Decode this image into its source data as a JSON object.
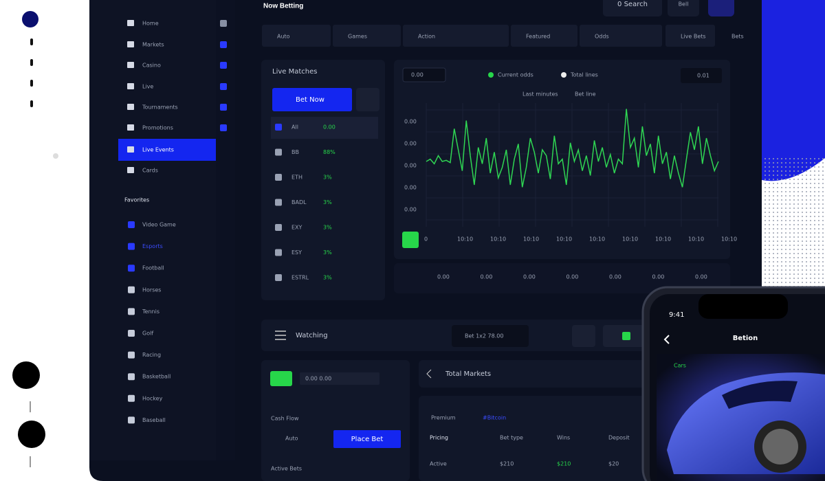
{
  "header": {
    "title": "Now Betting",
    "buttons": [
      "0 Search",
      "Bell"
    ]
  },
  "filters": [
    "Auto",
    "Games",
    "Action",
    "Featured",
    "Odds",
    "Live Bets",
    "Bets"
  ],
  "sidebar": {
    "items": [
      "Home",
      "Markets",
      "Casino",
      "Live",
      "Tournaments",
      "Promotions",
      "Live Events",
      "Cards"
    ],
    "active": 6,
    "section": "Favorites",
    "favorites": [
      "Video Game",
      "Esports",
      "Football",
      "Horses",
      "Tennis",
      "Golf",
      "Racing",
      "Basketball",
      "Hockey",
      "Baseball"
    ]
  },
  "live_panel": {
    "title": "Live Matches",
    "button": "Bet Now",
    "rows": [
      [
        "All",
        "0.00"
      ],
      [
        "BB",
        "88%"
      ],
      [
        "ETH",
        "3%"
      ],
      [
        "BADL",
        "3%"
      ],
      [
        "EXY",
        "3%"
      ],
      [
        "ESY",
        "3%"
      ],
      [
        "ESTRL",
        "3%"
      ]
    ]
  },
  "price_chart": {
    "badge": "0.00",
    "legend": [
      "Current odds",
      "Total lines"
    ],
    "selector": "0.01",
    "subtitle": [
      "Last minutes",
      "Bet line"
    ],
    "y_labels": [
      "0.00",
      "0.00",
      "0.00",
      "0.00",
      "0.00"
    ],
    "x_labels": [
      "0",
      "10:10",
      "10:10",
      "10:10",
      "10:10",
      "10:10",
      "10:10",
      "10:10",
      "10:10",
      "10:10"
    ],
    "bottom_labels": [
      "0.00",
      "0.00",
      "0.00",
      "0.00",
      "0.00",
      "0.00",
      "0.00"
    ],
    "ylim": [
      0,
      100
    ],
    "values": [
      50,
      52,
      48,
      55,
      50,
      51,
      49,
      78,
      60,
      42,
      85,
      55,
      30,
      62,
      48,
      70,
      40,
      58,
      36,
      45,
      60,
      30,
      52,
      65,
      28,
      45,
      70,
      58,
      40,
      60,
      55,
      35,
      72,
      48,
      52,
      30,
      66,
      50,
      60,
      42,
      55,
      38,
      68,
      50,
      62,
      45,
      56,
      40,
      52,
      48,
      95,
      62,
      70,
      45,
      80,
      55,
      65,
      40,
      72,
      48,
      58,
      35,
      55,
      40,
      28,
      52,
      75,
      60,
      80,
      48,
      70,
      55,
      42,
      50
    ]
  },
  "watch_bar": {
    "title": "Watching",
    "dropdown": "Bet 1x2 78.00"
  },
  "cash_panel": {
    "field": "0.00 0.00",
    "label": "Cash Flow",
    "select": "Auto",
    "button": "Place Bet",
    "footer": "Active Bets"
  },
  "markets_panel": {
    "title": "Total Markets",
    "tabs": [
      "Premium",
      "#Bitcoin"
    ],
    "headers": [
      "Pricing",
      "Bet type",
      "Wins",
      "Deposit"
    ],
    "row": [
      "Active",
      "$210",
      "$210",
      "$20"
    ]
  },
  "phone": {
    "time": "9:41",
    "title": "Betion",
    "tag": "Cars"
  }
}
